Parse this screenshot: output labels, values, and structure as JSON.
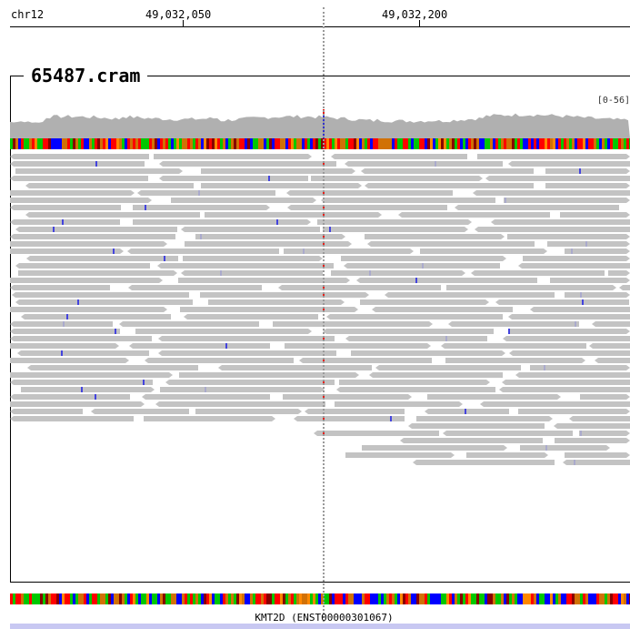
{
  "header": {
    "chromosome": "chr12",
    "positions": [
      "49,032,050",
      "49,032,200"
    ]
  },
  "track": {
    "name": "65487.cram",
    "range_label": "[0-56]"
  },
  "gene": {
    "label": "KMT2D (ENST00000301067)"
  },
  "colors": {
    "read": "#c3c3c3",
    "coverage": "#b0b0b0",
    "mismatch": "#e8201a",
    "gene_bar": "#c8c8f2",
    "base_A": "#00c800",
    "base_C": "#0000ff",
    "base_G": "#d17105",
    "base_T": "#ff0000"
  }
}
